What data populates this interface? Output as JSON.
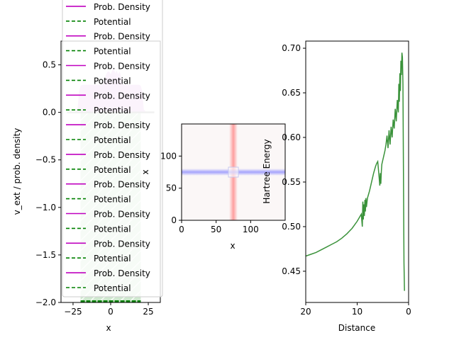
{
  "chart_data": [
    {
      "type": "line",
      "xlabel": "x",
      "ylabel": "v_ext / prob. density",
      "xlim": [
        -33,
        33
      ],
      "ylim": [
        -2.0,
        0.75
      ],
      "xticks": [
        "−25",
        "0",
        "25"
      ],
      "xtick_values": [
        -25,
        0,
        25
      ],
      "yticks": [
        "−2.0",
        "−1.5",
        "−1.0",
        "−0.5",
        "0.0",
        "0.5"
      ],
      "ytick_values": [
        -2.0,
        -1.5,
        -1.0,
        -0.5,
        0.0,
        0.5
      ],
      "legend": {
        "placement": "upper-left",
        "entries": [
          {
            "name": "Prob. Density",
            "style": "solid",
            "color": "#bf00bf"
          },
          {
            "name": "Potential",
            "style": "dashed",
            "color": "#008000"
          },
          {
            "name": "Prob. Density",
            "style": "solid",
            "color": "#bf00bf"
          },
          {
            "name": "Potential",
            "style": "dashed",
            "color": "#008000"
          },
          {
            "name": "Prob. Density",
            "style": "solid",
            "color": "#bf00bf"
          },
          {
            "name": "Potential",
            "style": "dashed",
            "color": "#008000"
          },
          {
            "name": "Prob. Density",
            "style": "solid",
            "color": "#bf00bf"
          },
          {
            "name": "Potential",
            "style": "dashed",
            "color": "#008000"
          },
          {
            "name": "Prob. Density",
            "style": "solid",
            "color": "#bf00bf"
          },
          {
            "name": "Potential",
            "style": "dashed",
            "color": "#008000"
          },
          {
            "name": "Prob. Density",
            "style": "solid",
            "color": "#bf00bf"
          },
          {
            "name": "Potential",
            "style": "dashed",
            "color": "#008000"
          },
          {
            "name": "Prob. Density",
            "style": "solid",
            "color": "#bf00bf"
          },
          {
            "name": "Potential",
            "style": "dashed",
            "color": "#008000"
          },
          {
            "name": "Prob. Density",
            "style": "solid",
            "color": "#bf00bf"
          },
          {
            "name": "Potential",
            "style": "dashed",
            "color": "#008000"
          },
          {
            "name": "Prob. Density",
            "style": "solid",
            "color": "#bf00bf"
          },
          {
            "name": "Potential",
            "style": "dashed",
            "color": "#008000"
          },
          {
            "name": "Prob. Density",
            "style": "solid",
            "color": "#bf00bf"
          },
          {
            "name": "Potential",
            "style": "dashed",
            "color": "#008000"
          }
        ]
      },
      "density_fill": {
        "color": "#e9b7ef",
        "x": [
          -33,
          -24,
          -22,
          -21,
          -20,
          -19,
          -18,
          -17,
          -16,
          -15,
          -14,
          -13,
          -12,
          -11,
          -10,
          -9,
          -8,
          -7,
          -6,
          -5,
          -4,
          -3,
          -2,
          -1,
          0,
          1,
          2,
          3,
          4,
          5,
          6,
          7,
          8,
          9,
          10,
          11,
          12,
          13,
          14,
          15,
          16,
          17,
          18,
          19,
          20,
          21,
          22,
          24,
          33
        ],
        "y": [
          0,
          0,
          0.03,
          0.22,
          0.28,
          0.29,
          0.29,
          0.29,
          0.29,
          0.29,
          0.29,
          0.29,
          0.29,
          0.29,
          0.29,
          0.29,
          0.29,
          0.29,
          0.29,
          0.31,
          0.36,
          0.4,
          0.43,
          0.43,
          0.4,
          0.44,
          0.47,
          0.41,
          0.44,
          0.4,
          0.43,
          0.37,
          0.3,
          0.29,
          0.29,
          0.29,
          0.29,
          0.29,
          0.29,
          0.29,
          0.29,
          0.29,
          0.29,
          0.29,
          0.28,
          0.22,
          0.03,
          0,
          0
        ]
      },
      "potential_fill": {
        "color": "#cfe9cf",
        "x_range": [
          -20,
          20
        ],
        "y_range": [
          -2.0,
          0.0
        ],
        "well_depth": -2.0
      }
    },
    {
      "type": "heatmap",
      "xlabel": "x",
      "ylabel": "x",
      "xlim": [
        0,
        150
      ],
      "ylim": [
        0,
        150
      ],
      "xticks": [
        "0",
        "50",
        "100"
      ],
      "xtick_values": [
        0,
        50,
        100
      ],
      "yticks": [
        "0",
        "50",
        "100"
      ],
      "ytick_values": [
        0,
        50,
        100
      ],
      "features": {
        "vertical_band": {
          "center": 75,
          "color": "#ff8080"
        },
        "horizontal_band": {
          "center": 75,
          "color": "#8080ff"
        }
      }
    },
    {
      "type": "line",
      "xlabel": "Distance",
      "ylabel": "Hartree Energy",
      "xlim": [
        20,
        0
      ],
      "ylim": [
        0.415,
        0.708
      ],
      "xticks": [
        "20",
        "10",
        "0"
      ],
      "xtick_values": [
        20,
        10,
        0
      ],
      "yticks": [
        "0.45",
        "0.50",
        "0.55",
        "0.60",
        "0.65",
        "0.70"
      ],
      "ytick_values": [
        0.45,
        0.5,
        0.55,
        0.6,
        0.65,
        0.7
      ],
      "series": [
        {
          "color": "#3a923a",
          "x": [
            20,
            19,
            18,
            17,
            16,
            15,
            14,
            13,
            12,
            11.5,
            11,
            10.5,
            10,
            9.5,
            9.2,
            9.0,
            8.9,
            8.8,
            8.7,
            8.6,
            8.5,
            8.4,
            8.3,
            8.2,
            8.0,
            7.8,
            7.6,
            7.4,
            7.2,
            7.0,
            6.8,
            6.6,
            6.4,
            6.2,
            6.0,
            5.8,
            5.6,
            5.5,
            5.4,
            5.3,
            5.2,
            5.0,
            4.8,
            4.6,
            4.4,
            4.2,
            4.0,
            3.8,
            3.6,
            3.4,
            3.2,
            3.0,
            2.8,
            2.6,
            2.4,
            2.2,
            2.0,
            1.9,
            1.8,
            1.7,
            1.6,
            1.5,
            1.4,
            1.3,
            1.2,
            1.1,
            1.0,
            0.9,
            0.8
          ],
          "y": [
            0.467,
            0.469,
            0.471,
            0.474,
            0.477,
            0.48,
            0.483,
            0.487,
            0.492,
            0.495,
            0.498,
            0.502,
            0.506,
            0.511,
            0.514,
            0.5,
            0.528,
            0.508,
            0.525,
            0.512,
            0.53,
            0.517,
            0.532,
            0.522,
            0.532,
            0.536,
            0.54,
            0.545,
            0.55,
            0.555,
            0.56,
            0.564,
            0.568,
            0.571,
            0.573,
            0.56,
            0.546,
            0.56,
            0.548,
            0.562,
            0.57,
            0.575,
            0.58,
            0.585,
            0.592,
            0.602,
            0.588,
            0.608,
            0.592,
            0.612,
            0.6,
            0.62,
            0.61,
            0.632,
            0.618,
            0.642,
            0.628,
            0.66,
            0.64,
            0.672,
            0.652,
            0.686,
            0.67,
            0.695,
            0.69,
            0.66,
            0.56,
            0.46,
            0.428
          ]
        }
      ]
    }
  ]
}
